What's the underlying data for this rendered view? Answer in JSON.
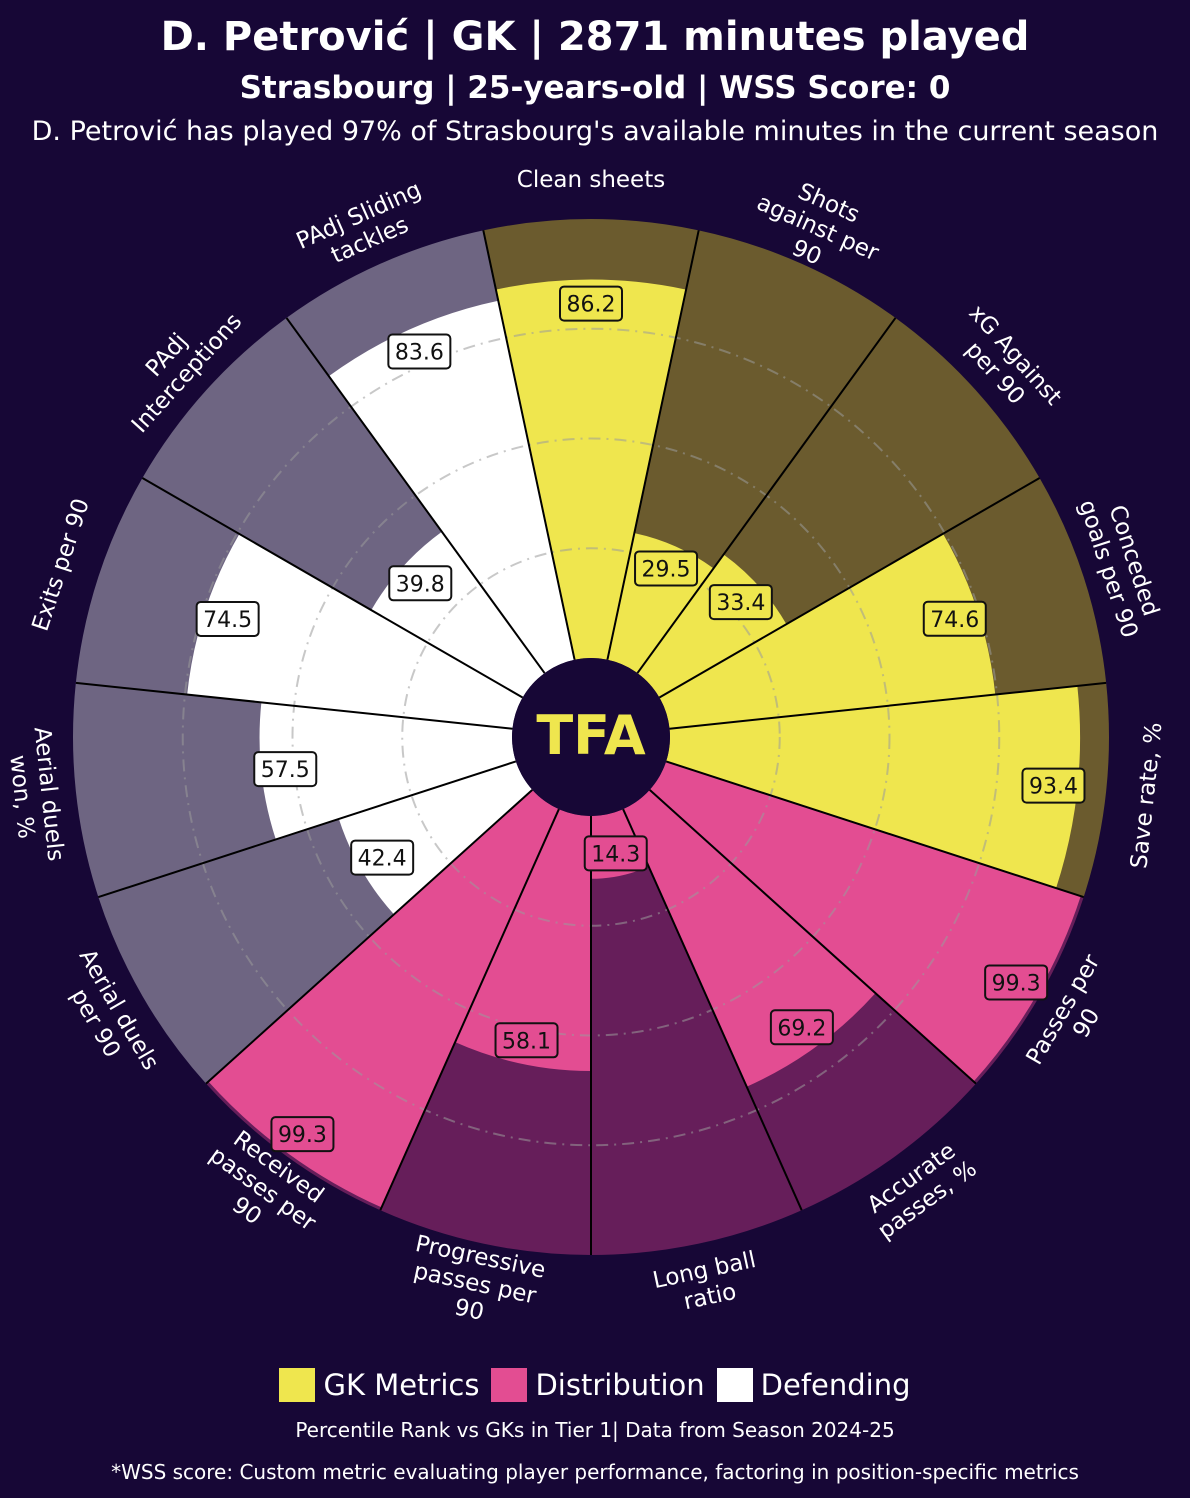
{
  "header": {
    "title": "D. Petrović | GK | 2871 minutes played",
    "subtitle": "Strasbourg | 25-years-old | WSS Score: 0",
    "note": "D. Petrović has played 97% of Strasbourg's available minutes in the current season"
  },
  "logo": "TFA",
  "colors": {
    "background": "#170736",
    "gk": "#EFE64E",
    "gk_bg": "#6B5B2E",
    "distribution": "#E34D92",
    "distribution_bg": "#661E5A",
    "defending": "#FFFFFF",
    "defending_bg": "#6E6582"
  },
  "chart_data": {
    "type": "polar-bar",
    "title": "D. Petrović | GK | 2871 minutes played",
    "range": [
      0,
      100
    ],
    "categories": [
      {
        "label": "Clean sheets",
        "value": 86.2,
        "group": "gk"
      },
      {
        "label": "Shots against per 90",
        "value": 29.5,
        "group": "gk"
      },
      {
        "label": "xG Against per 90",
        "value": 33.4,
        "group": "gk"
      },
      {
        "label": "Conceded goals per 90",
        "value": 74.6,
        "group": "gk"
      },
      {
        "label": "Save rate, %",
        "value": 93.4,
        "group": "gk"
      },
      {
        "label": "Passes per 90",
        "value": 99.3,
        "group": "distribution"
      },
      {
        "label": "Accurate passes, %",
        "value": 69.2,
        "group": "distribution"
      },
      {
        "label": "Long ball ratio",
        "value": 14.3,
        "group": "distribution"
      },
      {
        "label": "Progressive passes per 90",
        "value": 58.1,
        "group": "distribution"
      },
      {
        "label": "Received passes per 90",
        "value": 99.3,
        "group": "distribution"
      },
      {
        "label": "Aerial duels per 90",
        "value": 42.4,
        "group": "defending"
      },
      {
        "label": "Aerial duels won, %",
        "value": 57.5,
        "group": "defending"
      },
      {
        "label": "Exits per 90",
        "value": 74.5,
        "group": "defending"
      },
      {
        "label": "PAdj Interceptions",
        "value": 39.8,
        "group": "defending"
      },
      {
        "label": "PAdj Sliding tackles",
        "value": 83.6,
        "group": "defending"
      }
    ],
    "legend": [
      {
        "label": "GK Metrics",
        "group": "gk"
      },
      {
        "label": "Distribution",
        "group": "distribution"
      },
      {
        "label": "Defending",
        "group": "defending"
      }
    ]
  },
  "footer": {
    "line1": "Percentile Rank vs GKs in Tier 1| Data from Season 2024-25",
    "line2": "*WSS score: Custom metric evaluating player performance, factoring in position-specific metrics"
  }
}
